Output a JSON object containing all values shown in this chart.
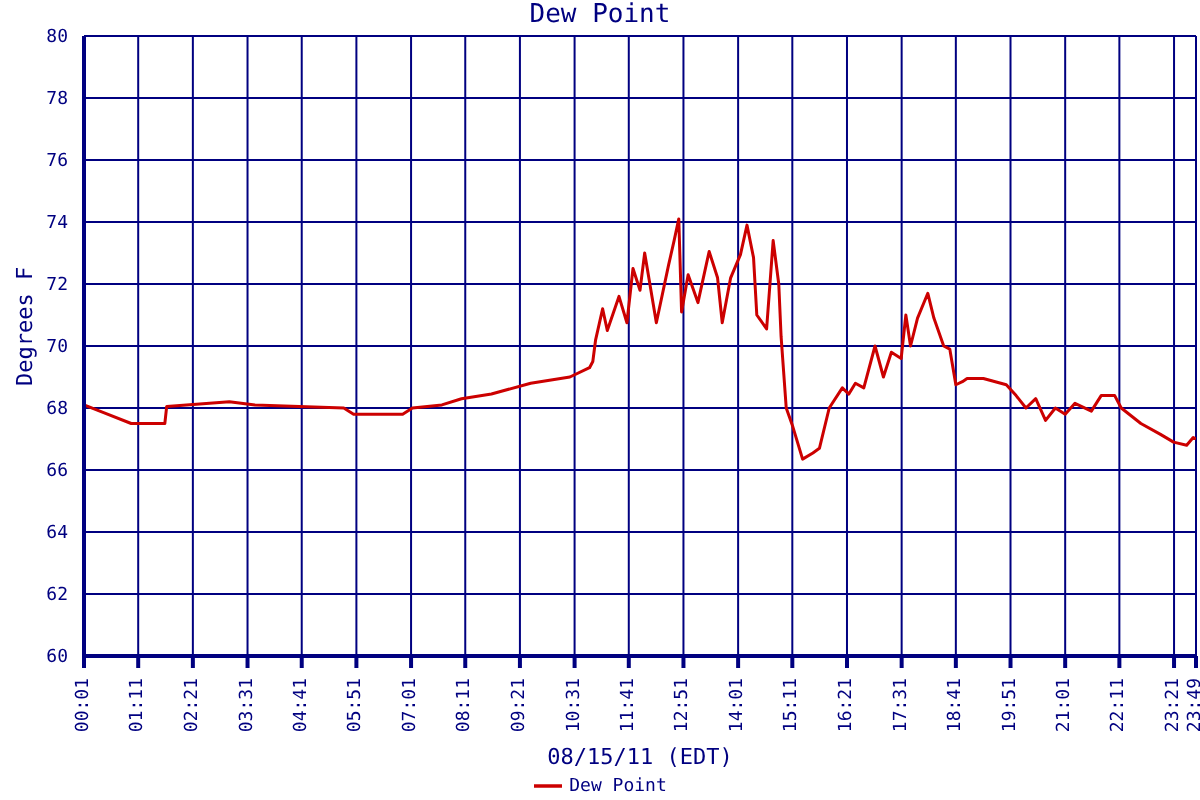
{
  "chart_data": {
    "type": "line",
    "title": "Dew Point",
    "xlabel": "08/15/11 (EDT)",
    "ylabel": "Degrees F",
    "x": [
      0.02,
      0.44,
      1.03,
      1.24,
      1.75,
      1.79,
      3.13,
      3.68,
      5.58,
      5.79,
      6.84,
      7.05,
      7.68,
      8.1,
      8.74,
      9.58,
      10.42,
      10.84,
      10.91,
      10.97,
      11.12,
      11.22,
      11.47,
      11.64,
      11.77,
      11.92,
      12.02,
      12.27,
      12.53,
      12.65,
      12.75,
      12.81,
      12.95,
      13.16,
      13.4,
      13.58,
      13.68,
      13.86,
      14.07,
      14.21,
      14.35,
      14.42,
      14.63,
      14.77,
      14.89,
      14.94,
      15.05,
      15.19,
      15.4,
      15.62,
      15.76,
      15.97,
      16.25,
      16.39,
      16.53,
      16.71,
      16.95,
      17.13,
      17.3,
      17.51,
      17.61,
      17.71,
      17.86,
      18.08,
      18.21,
      18.42,
      18.55,
      18.68,
      18.82,
      18.92,
      19.27,
      19.76,
      19.97,
      20.18,
      20.39,
      20.6,
      20.81,
      21.02,
      21.23,
      21.58,
      21.79,
      22.08,
      22.22,
      22.64,
      23.06,
      23.34,
      23.62,
      23.76,
      23.82
    ],
    "series": [
      {
        "name": "Dew Point",
        "color": "#cc0000",
        "values": [
          68.1,
          67.85,
          67.5,
          67.5,
          67.5,
          68.05,
          68.2,
          68.1,
          68.0,
          67.8,
          67.8,
          68.0,
          68.1,
          68.3,
          68.45,
          68.8,
          69.0,
          69.3,
          69.5,
          70.2,
          71.2,
          70.5,
          71.6,
          70.75,
          72.5,
          71.8,
          73.0,
          70.75,
          72.6,
          73.4,
          74.1,
          71.1,
          72.3,
          71.4,
          73.05,
          72.2,
          70.75,
          72.2,
          72.95,
          73.9,
          72.85,
          71.0,
          70.55,
          73.4,
          72.0,
          70.3,
          68.0,
          67.4,
          66.35,
          66.55,
          66.7,
          68.0,
          68.65,
          68.45,
          68.8,
          68.65,
          70.0,
          69.0,
          69.8,
          69.6,
          71.0,
          70.0,
          70.9,
          71.7,
          70.9,
          70.0,
          69.9,
          68.75,
          68.85,
          68.95,
          68.95,
          68.75,
          68.4,
          68.0,
          68.3,
          67.6,
          68.0,
          67.8,
          68.15,
          67.9,
          68.4,
          68.4,
          68.0,
          67.5,
          67.15,
          66.9,
          66.8,
          67.05,
          67.0
        ]
      }
    ],
    "xlim": [
      0.02,
      23.82
    ],
    "xticks": [
      {
        "value": 0.02,
        "label": "00:01"
      },
      {
        "value": 1.18,
        "label": "01:11"
      },
      {
        "value": 2.35,
        "label": "02:21"
      },
      {
        "value": 3.52,
        "label": "03:31"
      },
      {
        "value": 4.68,
        "label": "04:41"
      },
      {
        "value": 5.85,
        "label": "05:51"
      },
      {
        "value": 7.02,
        "label": "07:01"
      },
      {
        "value": 8.18,
        "label": "08:11"
      },
      {
        "value": 9.35,
        "label": "09:21"
      },
      {
        "value": 10.52,
        "label": "10:31"
      },
      {
        "value": 11.68,
        "label": "11:41"
      },
      {
        "value": 12.85,
        "label": "12:51"
      },
      {
        "value": 14.02,
        "label": "14:01"
      },
      {
        "value": 15.18,
        "label": "15:11"
      },
      {
        "value": 16.35,
        "label": "16:21"
      },
      {
        "value": 17.52,
        "label": "17:31"
      },
      {
        "value": 18.68,
        "label": "18:41"
      },
      {
        "value": 19.85,
        "label": "19:51"
      },
      {
        "value": 21.02,
        "label": "21:01"
      },
      {
        "value": 22.18,
        "label": "22:11"
      },
      {
        "value": 23.35,
        "label": "23:21"
      },
      {
        "value": 23.82,
        "label": "23:49"
      }
    ],
    "ylim": [
      60,
      80
    ],
    "yticks": [
      60,
      62,
      64,
      66,
      68,
      70,
      72,
      74,
      76,
      78,
      80
    ],
    "grid": true,
    "legend": "bottom",
    "marker": "none",
    "line_style": "solid"
  }
}
